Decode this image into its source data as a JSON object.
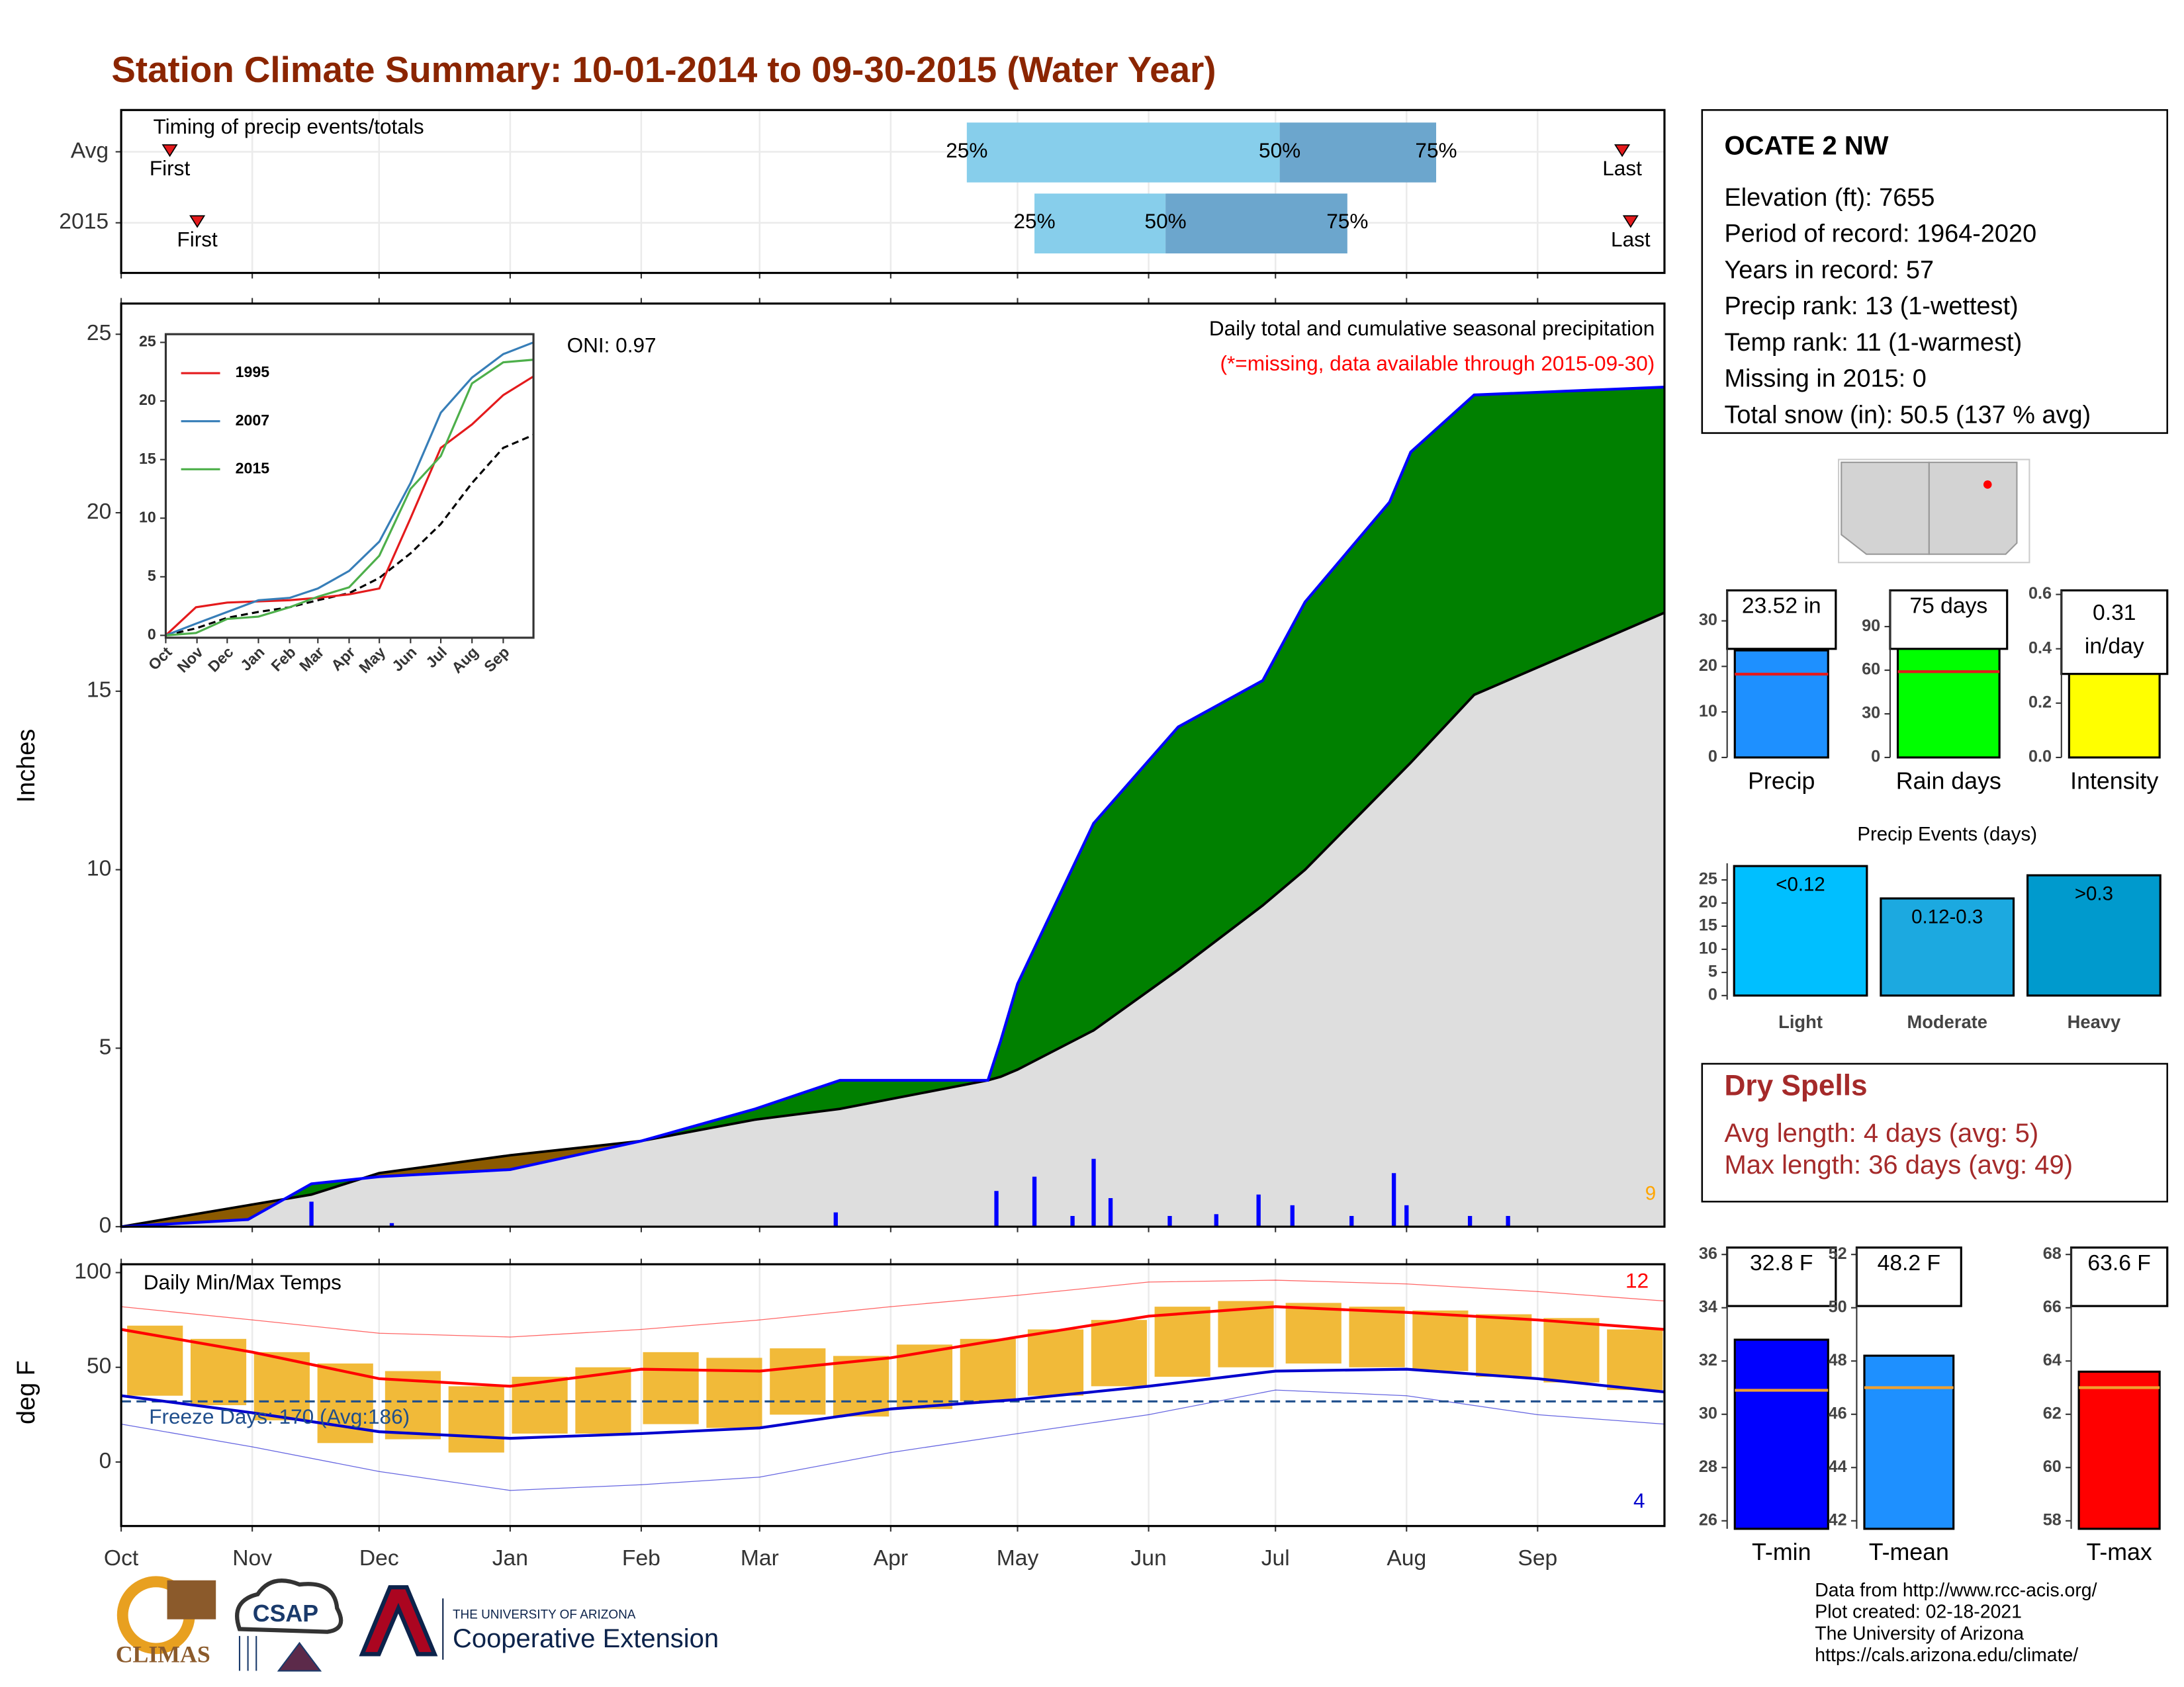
{
  "title": "Station Climate Summary: 10-01-2014 to 09-30-2015 (Water Year)",
  "chart_data": [
    {
      "type": "range",
      "title": "Timing of precip events/totals",
      "categories": [
        "Avg",
        "2015"
      ],
      "first": [
        11.5,
        18
      ],
      "q25": [
        200,
        216
      ],
      "q50": [
        274,
        247
      ],
      "q75": [
        311,
        290
      ],
      "last": [
        355,
        357
      ],
      "first_label": "First",
      "last_label": "Last",
      "q_labels": [
        "25%",
        "50%",
        "75%"
      ],
      "colors": [
        "#87ceeb",
        "#6ca6cd"
      ],
      "marker_color": "#e41a1c",
      "xlim": [
        0,
        365
      ],
      "xticks": [
        0,
        31,
        61,
        92,
        123,
        151,
        182,
        212,
        243,
        273,
        304,
        335
      ],
      "grid": true
    },
    {
      "type": "area",
      "title": "Daily total and cumulative seasonal precipitation",
      "subtitle": "(*=missing, data available through 2015-09-30)",
      "oni": "ONI: 0.97",
      "count": 9,
      "count_color": "#ffa500",
      "ylabel": "Inches",
      "x": [
        0,
        30,
        45,
        61,
        92,
        123,
        150,
        170,
        205,
        208,
        212,
        230,
        250,
        270,
        280,
        300,
        305,
        320,
        365
      ],
      "series": [
        {
          "name": "2015",
          "color": "#0000ff",
          "values": [
            0,
            0.2,
            1.2,
            1.4,
            1.6,
            2.4,
            3.3,
            4.1,
            4.1,
            5.2,
            6.8,
            11.3,
            14.0,
            15.3,
            17.5,
            20.3,
            21.7,
            23.3,
            23.52
          ]
        },
        {
          "name": "Average",
          "color": "#000000",
          "values": [
            0,
            0.6,
            0.9,
            1.5,
            2.0,
            2.4,
            3.0,
            3.3,
            4.1,
            4.2,
            4.4,
            5.5,
            7.2,
            9.0,
            10.0,
            12.4,
            13.0,
            14.9,
            17.2
          ]
        }
      ],
      "above_color": "#008000",
      "below_color": "#8b5a00",
      "base_color": "#dedede",
      "daily": {
        "x": [
          45,
          64,
          169,
          207,
          216,
          225,
          230,
          234,
          248,
          259,
          269,
          277,
          291,
          301,
          304,
          319,
          328
        ],
        "values": [
          0.7,
          0.1,
          0.4,
          1.0,
          1.4,
          0.3,
          1.9,
          0.8,
          0.3,
          0.35,
          0.9,
          0.6,
          0.3,
          1.5,
          0.6,
          0.3,
          0.3
        ],
        "color": "#0000ff"
      },
      "xlim": [
        0,
        365
      ],
      "xticks": [
        0,
        31,
        61,
        92,
        123,
        151,
        182,
        212,
        243,
        273,
        304,
        335
      ],
      "ylim": [
        0,
        25.86
      ],
      "yticks": [
        0,
        5,
        10,
        15,
        20,
        25
      ]
    },
    {
      "type": "line",
      "x": [
        0,
        30,
        61,
        92,
        123,
        151,
        182,
        212,
        243,
        273,
        304,
        335,
        365
      ],
      "series": [
        {
          "name": "1995",
          "color": "#e41a1c",
          "values": [
            0,
            2.4,
            2.8,
            2.9,
            3.0,
            3.2,
            3.5,
            4.0,
            10,
            16,
            18,
            20.5,
            22.1
          ]
        },
        {
          "name": "2007",
          "color": "#377eb8",
          "values": [
            0,
            1,
            2,
            3,
            3.2,
            4,
            5.5,
            8,
            13,
            19,
            22,
            24,
            25
          ]
        },
        {
          "name": "2015",
          "color": "#4daf4a",
          "values": [
            0,
            0.2,
            1.4,
            1.6,
            2.4,
            3.3,
            4.1,
            6.8,
            12.5,
            15.3,
            21.5,
            23.3,
            23.52
          ]
        }
      ],
      "average": [
        0,
        0.6,
        1.5,
        2.0,
        2.4,
        3.0,
        3.6,
        4.9,
        7.0,
        9.5,
        13.0,
        16.0,
        17.1
      ],
      "legend": "top-left",
      "xlim": [
        0,
        365
      ],
      "xticks": [
        {
          "value": 0,
          "label": "Oct"
        },
        {
          "value": 31,
          "label": "Nov"
        },
        {
          "value": 61,
          "label": "Dec"
        },
        {
          "value": 92,
          "label": "Jan"
        },
        {
          "value": 123,
          "label": "Feb"
        },
        {
          "value": 151,
          "label": "Mar"
        },
        {
          "value": 182,
          "label": "Apr"
        },
        {
          "value": 212,
          "label": "May"
        },
        {
          "value": 243,
          "label": "Jun"
        },
        {
          "value": 273,
          "label": "Jul"
        },
        {
          "value": 304,
          "label": "Aug"
        },
        {
          "value": 335,
          "label": "Sep"
        }
      ],
      "ylim": [
        -0.2,
        25.7
      ],
      "yticks": [
        0,
        5,
        10,
        15,
        20,
        25
      ]
    },
    {
      "type": "band",
      "title": "Daily Min/Max Temps",
      "ylabel": "deg F",
      "freeze_label": "Freeze Days: 170 (Avg:186)",
      "freeze": 32,
      "high_count": 12,
      "low_count": 4,
      "x": [
        0,
        31,
        61,
        92,
        123,
        151,
        182,
        212,
        243,
        273,
        304,
        335,
        365
      ],
      "avg_max": [
        70,
        58,
        44,
        40,
        49,
        48,
        55,
        66,
        77,
        82,
        79,
        75,
        70
      ],
      "avg_min": [
        35,
        26,
        16,
        12.5,
        15,
        18,
        28,
        33,
        40,
        48,
        49,
        44,
        37
      ],
      "rec_max": [
        82,
        75,
        68,
        66,
        70,
        75,
        82,
        88,
        95,
        96,
        94,
        90,
        85
      ],
      "rec_min": [
        20,
        8,
        -5,
        -15,
        -12,
        -8,
        5,
        15,
        25,
        38,
        35,
        25,
        20
      ],
      "daily_x": [
        8,
        23,
        38,
        53,
        69,
        84,
        99,
        114,
        130,
        145,
        160,
        175,
        190,
        205,
        221,
        236,
        251,
        266,
        282,
        297,
        312,
        327,
        343,
        358
      ],
      "daily_hi": [
        72,
        65,
        58,
        52,
        48,
        40,
        45,
        50,
        58,
        55,
        60,
        56,
        62,
        65,
        70,
        75,
        82,
        85,
        84,
        82,
        80,
        78,
        76,
        70
      ],
      "daily_lo": [
        35,
        30,
        22,
        10,
        12,
        5,
        15,
        15,
        20,
        18,
        25,
        24,
        28,
        32,
        35,
        40,
        45,
        50,
        52,
        50,
        48,
        45,
        42,
        38
      ],
      "colors": {
        "max": "#ff0000",
        "min": "#0000cd",
        "range": "#f0b323",
        "freeze": "#1f4e8c"
      },
      "xlim": [
        0,
        365
      ],
      "xticks": [
        {
          "value": 0,
          "label": "Oct"
        },
        {
          "value": 31,
          "label": "Nov"
        },
        {
          "value": 61,
          "label": "Dec"
        },
        {
          "value": 92,
          "label": "Jan"
        },
        {
          "value": 123,
          "label": "Feb"
        },
        {
          "value": 151,
          "label": "Mar"
        },
        {
          "value": 182,
          "label": "Apr"
        },
        {
          "value": 212,
          "label": "May"
        },
        {
          "value": 243,
          "label": "Jun"
        },
        {
          "value": 273,
          "label": "Jul"
        },
        {
          "value": 304,
          "label": "Aug"
        },
        {
          "value": 335,
          "label": "Sep"
        }
      ],
      "ylim": [
        -33.8,
        104.4
      ],
      "yticks": [
        0,
        50,
        100
      ],
      "grid": true
    },
    {
      "type": "bar",
      "categories": [
        "Precip"
      ],
      "values": [
        23.52
      ],
      "value_labels": [
        "23.52 in"
      ],
      "average": 18.3,
      "avg_color": "#e41a1c",
      "color": "#1e90ff",
      "ylim": [
        0,
        36.7
      ],
      "yticks": [
        0,
        10,
        20,
        30
      ]
    },
    {
      "type": "bar",
      "categories": [
        "Rain days"
      ],
      "values": [
        75
      ],
      "value_labels": [
        "75 days"
      ],
      "average": 59,
      "avg_color": "#e41a1c",
      "color": "#00ff00",
      "ylim": [
        0,
        114.9
      ],
      "yticks": [
        0,
        30,
        60,
        90
      ]
    },
    {
      "type": "bar",
      "categories": [
        "Intensity"
      ],
      "values": [
        0.31
      ],
      "value_labels": [
        "0.31"
      ],
      "unit": "in/day",
      "average": 0.31,
      "avg_color": "#e41a1c",
      "color": "#ffff00",
      "ylim": [
        0,
        0.615
      ],
      "yticks": [
        {
          "value": 0,
          "label": "0.0"
        },
        0.2,
        0.4,
        0.6
      ]
    },
    {
      "type": "bar",
      "title": "Precip Events (days)",
      "categories": [
        "Light",
        "Moderate",
        "Heavy"
      ],
      "values": [
        28,
        21,
        26
      ],
      "ranges": [
        "<0.12",
        "0.12-0.3",
        ">0.3"
      ],
      "colors": [
        "#00bfff",
        "#1ca9e0",
        "#009acd"
      ],
      "ylim": [
        -0.9,
        28.6
      ],
      "yticks": [
        0,
        5,
        10,
        15,
        20,
        25
      ]
    },
    {
      "type": "bar",
      "categories": [
        "T-min"
      ],
      "values": [
        32.8
      ],
      "value_labels": [
        "32.8 F"
      ],
      "average": 30.9,
      "avg_color": "#f0a030",
      "color": "#0000ff",
      "ylim": [
        25.7,
        36.26
      ],
      "yticks": [
        26,
        28,
        30,
        32,
        34,
        36
      ]
    },
    {
      "type": "bar",
      "categories": [
        "T-mean"
      ],
      "values": [
        48.2
      ],
      "value_labels": [
        "48.2 F"
      ],
      "average": 47.0,
      "avg_color": "#f0a030",
      "color": "#1e90ff",
      "ylim": [
        41.7,
        52.26
      ],
      "yticks": [
        42,
        44,
        46,
        48,
        50,
        52
      ]
    },
    {
      "type": "bar",
      "categories": [
        "T-max"
      ],
      "values": [
        63.6
      ],
      "value_labels": [
        "63.6 F"
      ],
      "average": 63.0,
      "avg_color": "#f0a030",
      "color": "#ff0000",
      "ylim": [
        57.7,
        68.26
      ],
      "yticks": [
        58,
        60,
        62,
        64,
        66,
        68
      ]
    }
  ],
  "station": {
    "name": "OCATE 2 NW",
    "lines": [
      "Elevation (ft): 7655",
      "Period of record: 1964-2020",
      "Years in record: 57",
      "Precip rank: 13 (1-wettest)",
      "Temp rank: 11 (1-warmest)",
      "Missing in 2015: 0",
      "Total snow (in): 50.5 (137 % avg)"
    ]
  },
  "dry_spells": {
    "title": "Dry Spells",
    "lines": [
      "Avg length: 4 days (avg: 5)",
      "Max length: 36 days (avg: 49)"
    ]
  },
  "footer": [
    "Data from http://www.rcc-acis.org/",
    "Plot created: 02-18-2021",
    "The University of Arizona",
    "https://cals.arizona.edu/climate/"
  ],
  "logos": {
    "climas": "CLIMAS",
    "csap": "CSAP",
    "university": "THE UNIVERSITY OF ARIZONA",
    "extension": "Cooperative Extension"
  }
}
